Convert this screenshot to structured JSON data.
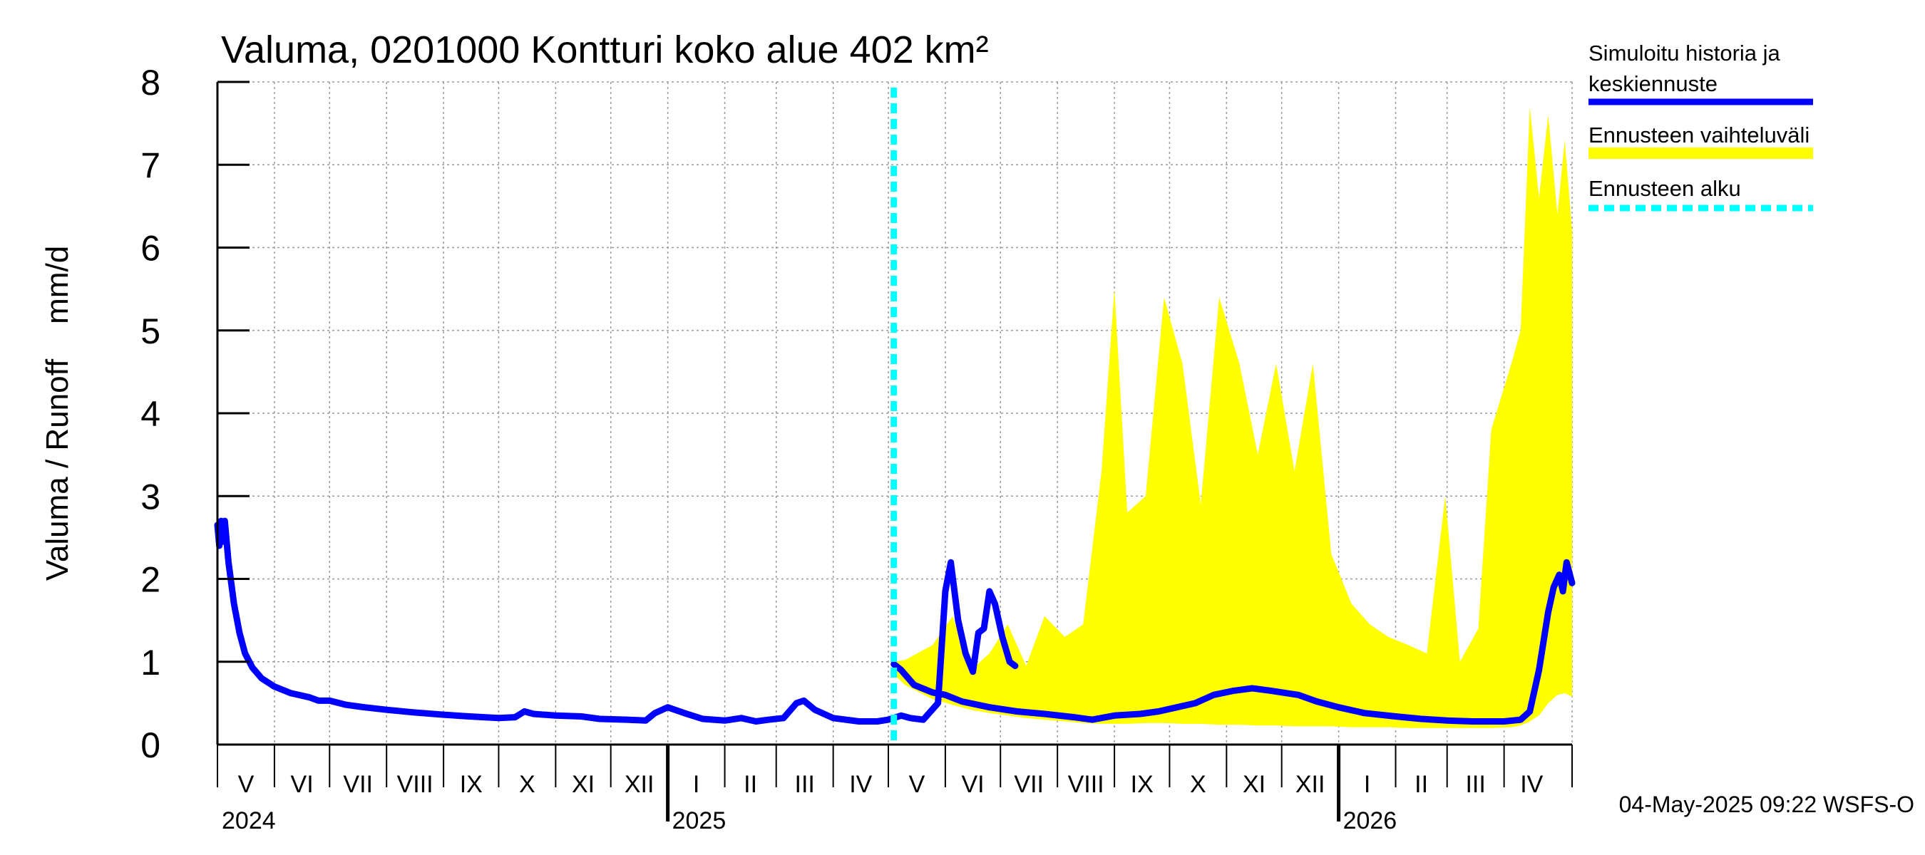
{
  "chart_data": {
    "type": "area",
    "title": "Valuma, 0201000 Kontturi koko alue 402 km²",
    "ylabel": "Valuma / Runoff    mm/d",
    "xlabel": "",
    "ylim": [
      0,
      8
    ],
    "yticks": [
      "0",
      "1",
      "2",
      "3",
      "4",
      "5",
      "6",
      "7",
      "8"
    ],
    "xlim": [
      "2024-05-01",
      "2026-05-08"
    ],
    "month_labels": [
      {
        "label": "V",
        "start": "2024-05-01",
        "end": "2024-06-01"
      },
      {
        "label": "VI",
        "start": "2024-06-01",
        "end": "2024-07-01"
      },
      {
        "label": "VII",
        "start": "2024-07-01",
        "end": "2024-08-01"
      },
      {
        "label": "VIII",
        "start": "2024-08-01",
        "end": "2024-09-01"
      },
      {
        "label": "IX",
        "start": "2024-09-01",
        "end": "2024-10-01"
      },
      {
        "label": "X",
        "start": "2024-10-01",
        "end": "2024-11-01"
      },
      {
        "label": "XI",
        "start": "2024-11-01",
        "end": "2024-12-01"
      },
      {
        "label": "XII",
        "start": "2024-12-01",
        "end": "2025-01-01"
      },
      {
        "label": "I",
        "start": "2025-01-01",
        "end": "2025-02-01"
      },
      {
        "label": "II",
        "start": "2025-02-01",
        "end": "2025-03-01"
      },
      {
        "label": "III",
        "start": "2025-03-01",
        "end": "2025-04-01"
      },
      {
        "label": "IV",
        "start": "2025-04-01",
        "end": "2025-05-01"
      },
      {
        "label": "V",
        "start": "2025-05-01",
        "end": "2025-06-01"
      },
      {
        "label": "VI",
        "start": "2025-06-01",
        "end": "2025-07-01"
      },
      {
        "label": "VII",
        "start": "2025-07-01",
        "end": "2025-08-01"
      },
      {
        "label": "VIII",
        "start": "2025-08-01",
        "end": "2025-09-01"
      },
      {
        "label": "IX",
        "start": "2025-09-01",
        "end": "2025-10-01"
      },
      {
        "label": "X",
        "start": "2025-10-01",
        "end": "2025-11-01"
      },
      {
        "label": "XI",
        "start": "2025-11-01",
        "end": "2025-12-01"
      },
      {
        "label": "XII",
        "start": "2025-12-01",
        "end": "2026-01-01"
      },
      {
        "label": "I",
        "start": "2026-01-01",
        "end": "2026-02-01"
      },
      {
        "label": "II",
        "start": "2026-02-01",
        "end": "2026-03-01"
      },
      {
        "label": "III",
        "start": "2026-03-01",
        "end": "2026-04-01"
      },
      {
        "label": "IV",
        "start": "2026-04-01",
        "end": "2026-05-01"
      }
    ],
    "year_labels": [
      {
        "label": "2024",
        "date": "2024-05-01"
      },
      {
        "label": "2025",
        "date": "2025-01-01"
      },
      {
        "label": "2026",
        "date": "2026-01-01"
      }
    ],
    "forecast_start": "2025-05-04",
    "grid": true,
    "legend_position": "right",
    "legend": [
      {
        "key": "history",
        "label_lines": [
          "Simuloitu historia ja",
          "keskiennuste"
        ],
        "color": "#0000ff",
        "style": "solid"
      },
      {
        "key": "band",
        "label_lines": [
          "Ennusteen vaihteluväli"
        ],
        "color": "#ffff00",
        "style": "solid"
      },
      {
        "key": "start",
        "label_lines": [
          "Ennusteen alku"
        ],
        "color": "#00ffff",
        "style": "dashed"
      }
    ],
    "footer": "04-May-2025 09:22 WSFS-O",
    "colors": {
      "history": "#0000ff",
      "band": "#ffff00",
      "start": "#00ffff",
      "grid": "#999999"
    },
    "series": [
      {
        "key": "history",
        "points": [
          [
            "2024-05-01",
            2.65
          ],
          [
            "2024-05-02",
            2.4
          ],
          [
            "2024-05-03",
            2.7
          ],
          [
            "2024-05-04",
            2.45
          ],
          [
            "2024-05-05",
            2.7
          ],
          [
            "2024-05-07",
            2.2
          ],
          [
            "2024-05-10",
            1.7
          ],
          [
            "2024-05-13",
            1.35
          ],
          [
            "2024-05-16",
            1.1
          ],
          [
            "2024-05-20",
            0.93
          ],
          [
            "2024-05-25",
            0.8
          ],
          [
            "2024-06-01",
            0.7
          ],
          [
            "2024-06-10",
            0.62
          ],
          [
            "2024-06-20",
            0.57
          ],
          [
            "2024-06-25",
            0.53
          ],
          [
            "2024-07-01",
            0.53
          ],
          [
            "2024-07-10",
            0.48
          ],
          [
            "2024-07-20",
            0.45
          ],
          [
            "2024-08-01",
            0.42
          ],
          [
            "2024-08-15",
            0.39
          ],
          [
            "2024-09-01",
            0.36
          ],
          [
            "2024-09-15",
            0.34
          ],
          [
            "2024-10-01",
            0.32
          ],
          [
            "2024-10-10",
            0.33
          ],
          [
            "2024-10-15",
            0.4
          ],
          [
            "2024-10-20",
            0.37
          ],
          [
            "2024-11-01",
            0.35
          ],
          [
            "2024-11-15",
            0.34
          ],
          [
            "2024-11-25",
            0.31
          ],
          [
            "2024-12-10",
            0.3
          ],
          [
            "2024-12-20",
            0.29
          ],
          [
            "2024-12-25",
            0.38
          ],
          [
            "2025-01-01",
            0.45
          ],
          [
            "2025-01-10",
            0.38
          ],
          [
            "2025-01-20",
            0.31
          ],
          [
            "2025-02-01",
            0.29
          ],
          [
            "2025-02-10",
            0.32
          ],
          [
            "2025-02-18",
            0.28
          ],
          [
            "2025-02-25",
            0.3
          ],
          [
            "2025-03-05",
            0.32
          ],
          [
            "2025-03-12",
            0.5
          ],
          [
            "2025-03-16",
            0.53
          ],
          [
            "2025-03-22",
            0.42
          ],
          [
            "2025-04-01",
            0.32
          ],
          [
            "2025-04-15",
            0.28
          ],
          [
            "2025-04-25",
            0.28
          ],
          [
            "2025-05-01",
            0.3
          ],
          [
            "2025-05-08",
            0.35
          ],
          [
            "2025-05-13",
            0.32
          ],
          [
            "2025-05-20",
            0.3
          ],
          [
            "2025-05-28",
            0.5
          ],
          [
            "2025-06-01",
            1.85
          ],
          [
            "2025-06-04",
            2.2
          ],
          [
            "2025-06-08",
            1.5
          ],
          [
            "2025-06-12",
            1.1
          ],
          [
            "2025-06-16",
            0.88
          ],
          [
            "2025-06-19",
            1.35
          ],
          [
            "2025-06-22",
            1.4
          ],
          [
            "2025-06-25",
            1.85
          ],
          [
            "2025-06-28",
            1.7
          ],
          [
            "2025-07-02",
            1.3
          ],
          [
            "2025-07-06",
            1.0
          ],
          [
            "2025-07-09",
            0.95
          ]
        ]
      },
      {
        "key": "median",
        "points": [
          [
            "2025-05-04",
            0.97
          ],
          [
            "2025-05-08",
            0.9
          ],
          [
            "2025-05-15",
            0.72
          ],
          [
            "2025-05-25",
            0.63
          ],
          [
            "2025-06-01",
            0.6
          ],
          [
            "2025-06-10",
            0.52
          ],
          [
            "2025-06-25",
            0.45
          ],
          [
            "2025-07-10",
            0.4
          ],
          [
            "2025-07-25",
            0.37
          ],
          [
            "2025-08-10",
            0.33
          ],
          [
            "2025-08-20",
            0.3
          ],
          [
            "2025-09-01",
            0.35
          ],
          [
            "2025-09-15",
            0.37
          ],
          [
            "2025-09-25",
            0.4
          ],
          [
            "2025-10-05",
            0.45
          ],
          [
            "2025-10-15",
            0.5
          ],
          [
            "2025-10-25",
            0.6
          ],
          [
            "2025-11-05",
            0.65
          ],
          [
            "2025-11-15",
            0.68
          ],
          [
            "2025-11-25",
            0.65
          ],
          [
            "2025-12-10",
            0.6
          ],
          [
            "2025-12-20",
            0.52
          ],
          [
            "2026-01-01",
            0.45
          ],
          [
            "2026-01-15",
            0.38
          ],
          [
            "2026-02-01",
            0.34
          ],
          [
            "2026-02-15",
            0.31
          ],
          [
            "2026-03-01",
            0.29
          ],
          [
            "2026-03-15",
            0.28
          ],
          [
            "2026-04-01",
            0.28
          ],
          [
            "2026-04-10",
            0.3
          ],
          [
            "2026-04-15",
            0.4
          ],
          [
            "2026-04-20",
            0.9
          ],
          [
            "2026-04-25",
            1.6
          ],
          [
            "2026-04-28",
            1.9
          ],
          [
            "2026-05-01",
            2.05
          ],
          [
            "2026-05-03",
            1.85
          ],
          [
            "2026-05-05",
            2.2
          ],
          [
            "2026-05-08",
            1.95
          ]
        ]
      },
      {
        "key": "band",
        "points": [
          [
            "2025-05-04",
            1.0,
            0.85
          ],
          [
            "2025-05-10",
            1.02,
            0.72
          ],
          [
            "2025-05-25",
            1.2,
            0.55
          ],
          [
            "2025-06-05",
            1.55,
            0.48
          ],
          [
            "2025-06-15",
            0.9,
            0.42
          ],
          [
            "2025-06-25",
            1.1,
            0.38
          ],
          [
            "2025-07-05",
            1.45,
            0.35
          ],
          [
            "2025-07-15",
            0.95,
            0.32
          ],
          [
            "2025-07-25",
            1.55,
            0.3
          ],
          [
            "2025-08-05",
            1.3,
            0.28
          ],
          [
            "2025-08-15",
            1.45,
            0.26
          ],
          [
            "2025-08-25",
            3.3,
            0.25
          ],
          [
            "2025-09-01",
            5.5,
            0.25
          ],
          [
            "2025-09-08",
            2.8,
            0.25
          ],
          [
            "2025-09-18",
            3.0,
            0.26
          ],
          [
            "2025-09-28",
            5.4,
            0.26
          ],
          [
            "2025-10-08",
            4.6,
            0.25
          ],
          [
            "2025-10-18",
            2.9,
            0.25
          ],
          [
            "2025-10-28",
            5.4,
            0.24
          ],
          [
            "2025-11-08",
            4.6,
            0.24
          ],
          [
            "2025-11-18",
            3.5,
            0.23
          ],
          [
            "2025-11-28",
            4.6,
            0.23
          ],
          [
            "2025-12-08",
            3.3,
            0.22
          ],
          [
            "2025-12-18",
            4.6,
            0.22
          ],
          [
            "2025-12-28",
            2.3,
            0.22
          ],
          [
            "2026-01-08",
            1.7,
            0.21
          ],
          [
            "2026-01-18",
            1.45,
            0.21
          ],
          [
            "2026-01-28",
            1.3,
            0.21
          ],
          [
            "2026-02-08",
            1.2,
            0.2
          ],
          [
            "2026-02-18",
            1.1,
            0.2
          ],
          [
            "2026-02-28",
            3.0,
            0.2
          ],
          [
            "2026-03-08",
            1.0,
            0.2
          ],
          [
            "2026-03-18",
            1.4,
            0.2
          ],
          [
            "2026-03-25",
            3.8,
            0.2
          ],
          [
            "2026-04-05",
            4.6,
            0.21
          ],
          [
            "2026-04-10",
            5.0,
            0.23
          ],
          [
            "2026-04-15",
            7.7,
            0.28
          ],
          [
            "2026-04-20",
            6.6,
            0.35
          ],
          [
            "2026-04-25",
            7.6,
            0.5
          ],
          [
            "2026-04-30",
            6.4,
            0.6
          ],
          [
            "2026-05-04",
            7.3,
            0.62
          ],
          [
            "2026-05-08",
            6.2,
            0.58
          ]
        ]
      }
    ]
  }
}
